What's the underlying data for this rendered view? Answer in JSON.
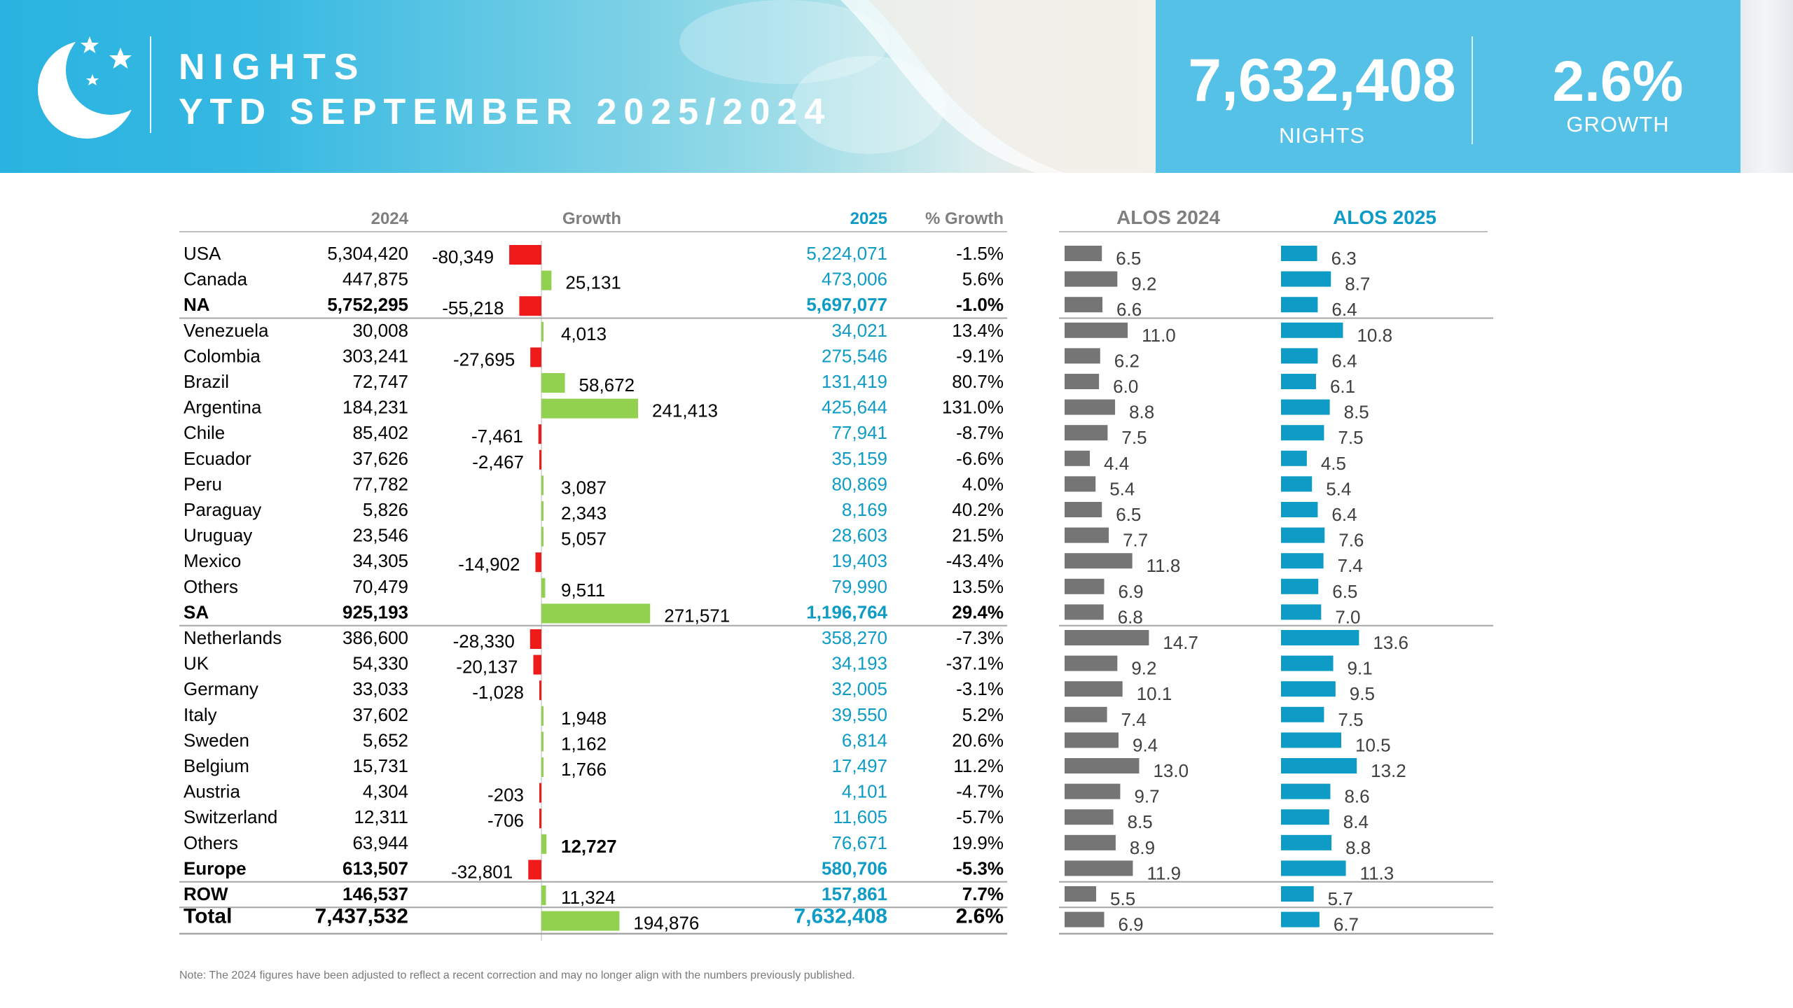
{
  "header": {
    "title_line1": "NIGHTS",
    "title_line2": "YTD SEPTEMBER 2025/2024",
    "kpi_nights_value": "7,632,408",
    "kpi_nights_label": "NIGHTS",
    "kpi_growth_value": "2.6%",
    "kpi_growth_label": "GROWTH"
  },
  "colors": {
    "blue": "#0e9bc6",
    "grey_bar": "#757575",
    "neg_bar": "#ef1b1b",
    "pos_bar": "#92d050",
    "header_blue": "#56c1e6"
  },
  "chart_data": {
    "type": "table",
    "title": "NIGHTS YTD SEPTEMBER 2025/2024",
    "columns": {
      "y2024": "2024",
      "growth": "Growth",
      "y2025": "2025",
      "pct": "% Growth",
      "alos2024": "ALOS 2024",
      "alos2025": "ALOS 2025"
    },
    "rows": [
      {
        "name": "USA",
        "v2024": "5,304,420",
        "growth": -80349,
        "growth_label": "-80,349",
        "v2025": "5,224,071",
        "pct": "-1.5%",
        "alos2024": 6.5,
        "alos2025": 6.3
      },
      {
        "name": "Canada",
        "v2024": "447,875",
        "growth": 25131,
        "growth_label": "25,131",
        "v2025": "473,006",
        "pct": "5.6%",
        "alos2024": 9.2,
        "alos2025": 8.7
      },
      {
        "name": "NA",
        "v2024": "5,752,295",
        "growth": -55218,
        "growth_label": "-55,218",
        "v2025": "5,697,077",
        "pct": "-1.0%",
        "alos2024": 6.6,
        "alos2025": 6.4,
        "bold": true,
        "line_after": true
      },
      {
        "name": "Venezuela",
        "v2024": "30,008",
        "growth": 4013,
        "growth_label": "4,013",
        "v2025": "34,021",
        "pct": "13.4%",
        "alos2024": 11.0,
        "alos2025": 10.8
      },
      {
        "name": "Colombia",
        "v2024": "303,241",
        "growth": -27695,
        "growth_label": "-27,695",
        "v2025": "275,546",
        "pct": "-9.1%",
        "alos2024": 6.2,
        "alos2025": 6.4
      },
      {
        "name": "Brazil",
        "v2024": "72,747",
        "growth": 58672,
        "growth_label": "58,672",
        "v2025": "131,419",
        "pct": "80.7%",
        "alos2024": 6.0,
        "alos2025": 6.1
      },
      {
        "name": "Argentina",
        "v2024": "184,231",
        "growth": 241413,
        "growth_label": "241,413",
        "v2025": "425,644",
        "pct": "131.0%",
        "alos2024": 8.8,
        "alos2025": 8.5
      },
      {
        "name": "Chile",
        "v2024": "85,402",
        "growth": -7461,
        "growth_label": "-7,461",
        "v2025": "77,941",
        "pct": "-8.7%",
        "alos2024": 7.5,
        "alos2025": 7.5
      },
      {
        "name": "Ecuador",
        "v2024": "37,626",
        "growth": -2467,
        "growth_label": "-2,467",
        "v2025": "35,159",
        "pct": "-6.6%",
        "alos2024": 4.4,
        "alos2025": 4.5
      },
      {
        "name": "Peru",
        "v2024": "77,782",
        "growth": 3087,
        "growth_label": "3,087",
        "v2025": "80,869",
        "pct": "4.0%",
        "alos2024": 5.4,
        "alos2025": 5.4
      },
      {
        "name": "Paraguay",
        "v2024": "5,826",
        "growth": 2343,
        "growth_label": "2,343",
        "v2025": "8,169",
        "pct": "40.2%",
        "alos2024": 6.5,
        "alos2025": 6.4
      },
      {
        "name": "Uruguay",
        "v2024": "23,546",
        "growth": 5057,
        "growth_label": "5,057",
        "v2025": "28,603",
        "pct": "21.5%",
        "alos2024": 7.7,
        "alos2025": 7.6
      },
      {
        "name": "Mexico",
        "v2024": "34,305",
        "growth": -14902,
        "growth_label": "-14,902",
        "v2025": "19,403",
        "pct": "-43.4%",
        "alos2024": 11.8,
        "alos2025": 7.4
      },
      {
        "name": "Others",
        "v2024": "70,479",
        "growth": 9511,
        "growth_label": "9,511",
        "v2025": "79,990",
        "pct": "13.5%",
        "alos2024": 6.9,
        "alos2025": 6.5
      },
      {
        "name": "SA",
        "v2024": "925,193",
        "growth": 271571,
        "growth_label": "271,571",
        "v2025": "1,196,764",
        "pct": "29.4%",
        "alos2024": 6.8,
        "alos2025": 7.0,
        "bold": true,
        "line_after": true
      },
      {
        "name": "Netherlands",
        "v2024": "386,600",
        "growth": -28330,
        "growth_label": "-28,330",
        "v2025": "358,270",
        "pct": "-7.3%",
        "alos2024": 14.7,
        "alos2025": 13.6
      },
      {
        "name": "UK",
        "v2024": "54,330",
        "growth": -20137,
        "growth_label": "-20,137",
        "v2025": "34,193",
        "pct": "-37.1%",
        "alos2024": 9.2,
        "alos2025": 9.1
      },
      {
        "name": "Germany",
        "v2024": "33,033",
        "growth": -1028,
        "growth_label": "-1,028",
        "v2025": "32,005",
        "pct": "-3.1%",
        "alos2024": 10.1,
        "alos2025": 9.5
      },
      {
        "name": "Italy",
        "v2024": "37,602",
        "growth": 1948,
        "growth_label": "1,948",
        "v2025": "39,550",
        "pct": "5.2%",
        "alos2024": 7.4,
        "alos2025": 7.5
      },
      {
        "name": "Sweden",
        "v2024": "5,652",
        "growth": 1162,
        "growth_label": "1,162",
        "v2025": "6,814",
        "pct": "20.6%",
        "alos2024": 9.4,
        "alos2025": 10.5
      },
      {
        "name": "Belgium",
        "v2024": "15,731",
        "growth": 1766,
        "growth_label": "1,766",
        "v2025": "17,497",
        "pct": "11.2%",
        "alos2024": 13.0,
        "alos2025": 13.2
      },
      {
        "name": "Austria",
        "v2024": "4,304",
        "growth": -203,
        "growth_label": "-203",
        "v2025": "4,101",
        "pct": "-4.7%",
        "alos2024": 9.7,
        "alos2025": 8.6
      },
      {
        "name": "Switzerland",
        "v2024": "12,311",
        "growth": -706,
        "growth_label": "-706",
        "v2025": "11,605",
        "pct": "-5.7%",
        "alos2024": 8.5,
        "alos2025": 8.4
      },
      {
        "name": "Others",
        "v2024": "63,944",
        "growth": 12727,
        "growth_label": "12,727",
        "v2025": "76,671",
        "pct": "19.9%",
        "alos2024": 8.9,
        "alos2025": 8.8,
        "bold_growth": true
      },
      {
        "name": "Europe",
        "v2024": "613,507",
        "growth": -32801,
        "growth_label": "-32,801",
        "v2025": "580,706",
        "pct": "-5.3%",
        "alos2024": 11.9,
        "alos2025": 11.3,
        "bold": true,
        "line_after": true
      },
      {
        "name": "ROW",
        "v2024": "146,537",
        "growth": 11324,
        "growth_label": "11,324",
        "v2025": "157,861",
        "pct": "7.7%",
        "alos2024": 5.5,
        "alos2025": 5.7,
        "bold": true,
        "line_after": true
      },
      {
        "name": "Total",
        "v2024": "7,437,532",
        "growth": 194876,
        "growth_label": "194,876",
        "v2025": "7,632,408",
        "pct": "2.6%",
        "alos2024": 6.9,
        "alos2025": 6.7,
        "bold": true,
        "total": true
      }
    ]
  },
  "note": "Note: The 2024 figures have been adjusted to reflect a recent correction and may no longer align with the numbers previously published."
}
